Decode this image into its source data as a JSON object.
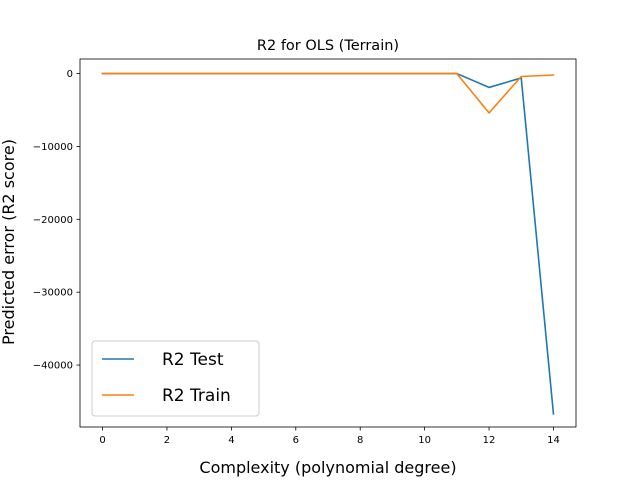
{
  "chart_data": {
    "type": "line",
    "title": "R2 for OLS (Terrain)",
    "xlabel": "Complexity (polynomial degree)",
    "ylabel": "Predicted error (R2 score)",
    "xlim": [
      -0.7,
      14.7
    ],
    "ylim": [
      -48500,
      2000
    ],
    "xticks": [
      0,
      2,
      4,
      6,
      8,
      10,
      12,
      14
    ],
    "yticks": [
      0,
      -10000,
      -20000,
      -30000,
      -40000
    ],
    "ytick_labels": [
      "0",
      "−10000",
      "−20000",
      "−30000",
      "−40000"
    ],
    "x": [
      0,
      1,
      2,
      3,
      4,
      5,
      6,
      7,
      8,
      9,
      10,
      11,
      12,
      13,
      14
    ],
    "series": [
      {
        "name": "R2 Test",
        "color": "#1f77b4",
        "values": [
          0,
          0,
          0,
          0,
          0,
          0,
          0,
          0,
          0,
          0,
          0,
          0,
          -1900,
          -600,
          -46700
        ]
      },
      {
        "name": "R2 Train",
        "color": "#ff7f0e",
        "values": [
          0,
          0,
          0,
          0,
          0,
          0,
          0,
          0,
          0,
          0,
          0,
          0,
          -5400,
          -400,
          -200
        ]
      }
    ],
    "legend_position": "lower-left",
    "grid": false
  }
}
